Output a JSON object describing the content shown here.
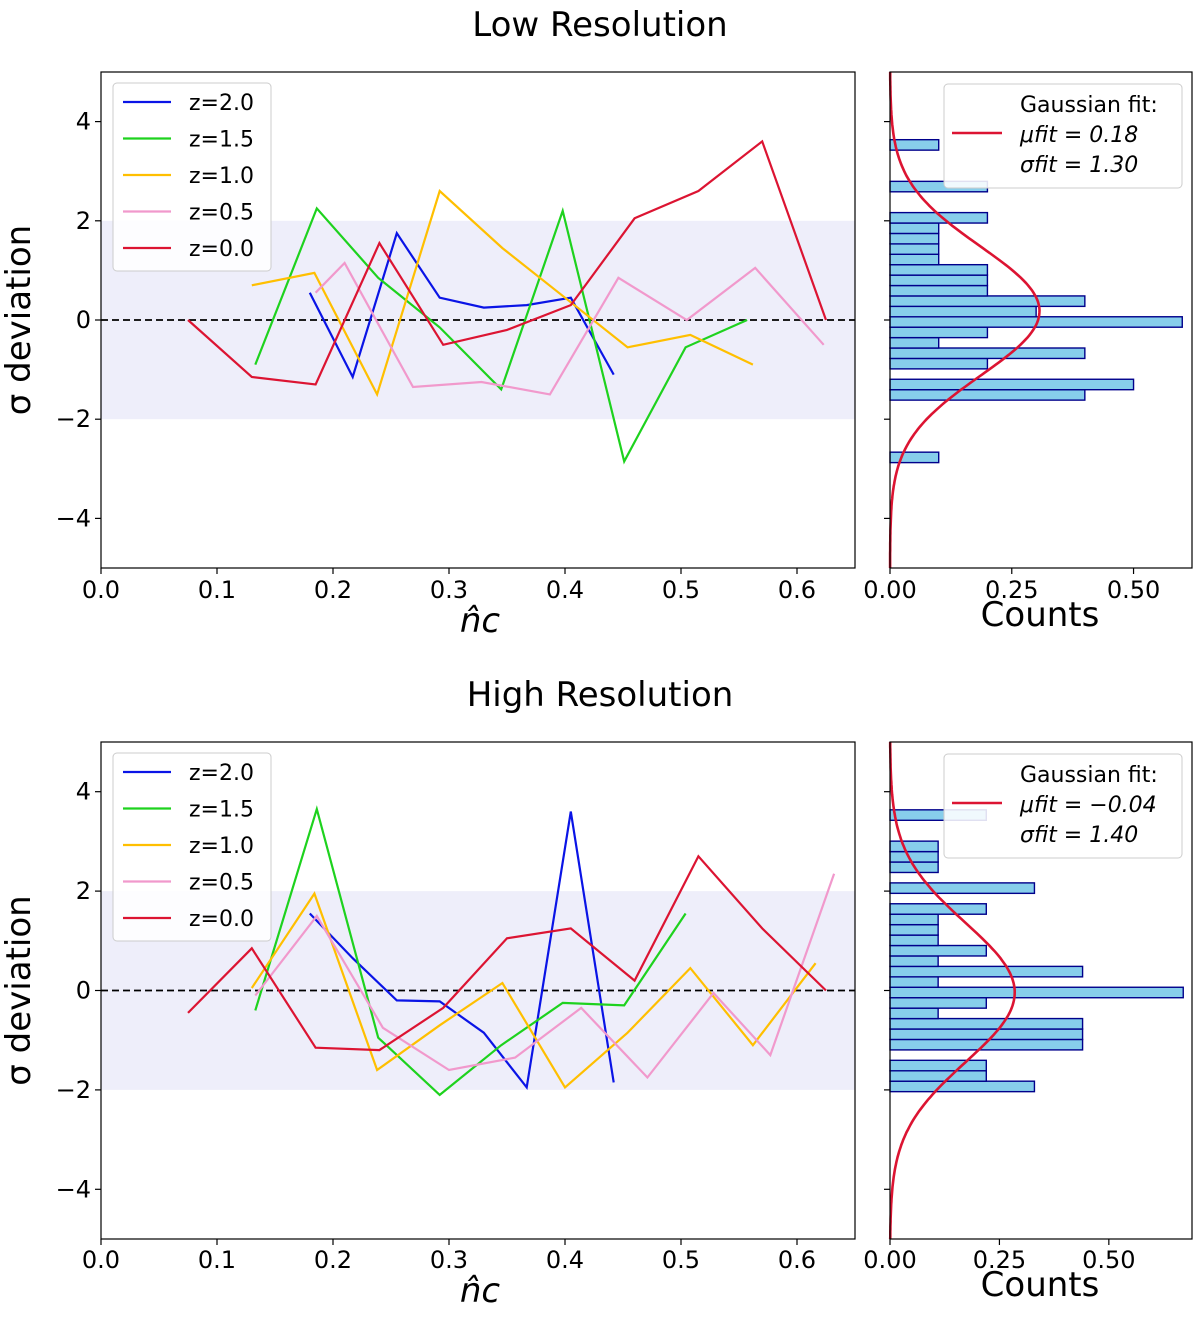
{
  "colors": {
    "z2.0": "#0a14e6",
    "z1.5": "#1ed21e",
    "z1.0": "#ffbf00",
    "z0.5": "#f199cc",
    "z0.0": "#dc1432",
    "band": "#eeeefa",
    "bar_fill": "#87ceeb",
    "bar_edge": "#00008b",
    "fit": "#dc1432"
  },
  "chart_data": [
    {
      "type": "line",
      "title": "Low Resolution",
      "xlabel": "n̂c",
      "ylabel": "σ deviation",
      "xlim": [
        0.0,
        0.65
      ],
      "ylim": [
        -5,
        5
      ],
      "xticks": [
        "0.0",
        "0.1",
        "0.2",
        "0.3",
        "0.4",
        "0.5",
        "0.6"
      ],
      "yticks": [
        "−4",
        "−2",
        "0",
        "2",
        "4"
      ],
      "band": [
        -2,
        2
      ],
      "reference_line": 0,
      "legend_position": "top-left",
      "series": [
        {
          "name": "z=2.0",
          "color_key": "z2.0",
          "x": [
            0.18,
            0.217,
            0.255,
            0.292,
            0.33,
            0.367,
            0.405,
            0.442
          ],
          "y": [
            0.55,
            -1.15,
            1.75,
            0.45,
            0.25,
            0.3,
            0.45,
            -1.1
          ]
        },
        {
          "name": "z=1.5",
          "color_key": "z1.5",
          "x": [
            0.133,
            0.186,
            0.239,
            0.292,
            0.345,
            0.398,
            0.451,
            0.504,
            0.557
          ],
          "y": [
            -0.9,
            2.25,
            0.85,
            -0.15,
            -1.4,
            2.2,
            -2.85,
            -0.55,
            0.0
          ]
        },
        {
          "name": "z=1.0",
          "color_key": "z1.0",
          "x": [
            0.13,
            0.184,
            0.238,
            0.292,
            0.346,
            0.4,
            0.454,
            0.508,
            0.562
          ],
          "y": [
            0.7,
            0.95,
            -1.5,
            2.6,
            1.45,
            0.45,
            -0.55,
            -0.3,
            -0.9
          ]
        },
        {
          "name": "z=0.5",
          "color_key": "z0.5",
          "x": [
            0.185,
            0.21,
            0.269,
            0.328,
            0.387,
            0.446,
            0.505,
            0.564,
            0.623
          ],
          "y": [
            0.55,
            1.15,
            -1.35,
            -1.25,
            -1.5,
            0.85,
            0.0,
            1.05,
            -0.5
          ]
        },
        {
          "name": "z=0.0",
          "color_key": "z0.0",
          "x": [
            0.075,
            0.13,
            0.185,
            0.24,
            0.295,
            0.35,
            0.405,
            0.46,
            0.515,
            0.57,
            0.625
          ],
          "y": [
            0.0,
            -1.15,
            -1.3,
            1.55,
            -0.5,
            -0.2,
            0.3,
            2.05,
            2.6,
            3.6,
            0.0
          ]
        }
      ]
    },
    {
      "type": "bar",
      "orientation": "horizontal",
      "xlabel": "Counts",
      "xlim": [
        0,
        0.62
      ],
      "ylim": [
        -5,
        5
      ],
      "xticks": [
        "0.00",
        "0.25",
        "0.50"
      ],
      "bin_width": 0.2105,
      "bins": [
        {
          "y": -2.77,
          "count": 0.1
        },
        {
          "y": -1.51,
          "count": 0.4
        },
        {
          "y": -1.3,
          "count": 0.5
        },
        {
          "y": -0.88,
          "count": 0.2
        },
        {
          "y": -0.67,
          "count": 0.4
        },
        {
          "y": -0.46,
          "count": 0.1
        },
        {
          "y": -0.25,
          "count": 0.2
        },
        {
          "y": -0.04,
          "count": 0.6
        },
        {
          "y": 0.17,
          "count": 0.3
        },
        {
          "y": 0.38,
          "count": 0.4
        },
        {
          "y": 0.59,
          "count": 0.2
        },
        {
          "y": 0.8,
          "count": 0.2
        },
        {
          "y": 1.01,
          "count": 0.2
        },
        {
          "y": 1.22,
          "count": 0.1
        },
        {
          "y": 1.43,
          "count": 0.1
        },
        {
          "y": 1.64,
          "count": 0.1
        },
        {
          "y": 1.85,
          "count": 0.1
        },
        {
          "y": 2.06,
          "count": 0.2
        },
        {
          "y": 2.69,
          "count": 0.2
        },
        {
          "y": 3.53,
          "count": 0.1
        }
      ],
      "fit": {
        "mu": 0.18,
        "sigma": 1.3
      },
      "legend_title": "Gaussian fit:",
      "legend_lines": [
        "μfit = 0.18",
        "σfit = 1.30"
      ]
    },
    {
      "type": "line",
      "title": "High Resolution",
      "xlabel": "n̂c",
      "ylabel": "σ deviation",
      "xlim": [
        0.0,
        0.65
      ],
      "ylim": [
        -5,
        5
      ],
      "xticks": [
        "0.0",
        "0.1",
        "0.2",
        "0.3",
        "0.4",
        "0.5",
        "0.6"
      ],
      "yticks": [
        "−4",
        "−2",
        "0",
        "2",
        "4"
      ],
      "band": [
        -2,
        2
      ],
      "reference_line": 0,
      "legend_position": "top-left",
      "series": [
        {
          "name": "z=2.0",
          "color_key": "z2.0",
          "x": [
            0.18,
            0.217,
            0.255,
            0.292,
            0.33,
            0.367,
            0.405,
            0.442
          ],
          "y": [
            1.55,
            0.65,
            -0.2,
            -0.22,
            -0.85,
            -1.95,
            3.6,
            -1.85
          ]
        },
        {
          "name": "z=1.5",
          "color_key": "z1.5",
          "x": [
            0.133,
            0.186,
            0.239,
            0.292,
            0.345,
            0.398,
            0.451,
            0.504
          ],
          "y": [
            -0.4,
            3.65,
            -0.95,
            -2.1,
            -1.1,
            -0.25,
            -0.3,
            1.55
          ]
        },
        {
          "name": "z=1.0",
          "color_key": "z1.0",
          "x": [
            0.13,
            0.184,
            0.238,
            0.292,
            0.346,
            0.4,
            0.454,
            0.508,
            0.562,
            0.616
          ],
          "y": [
            0.05,
            1.95,
            -1.6,
            -0.7,
            0.15,
            -1.95,
            -0.85,
            0.45,
            -1.1,
            0.55
          ]
        },
        {
          "name": "z=0.5",
          "color_key": "z0.5",
          "x": [
            0.133,
            0.186,
            0.243,
            0.3,
            0.357,
            0.414,
            0.471,
            0.528,
            0.577,
            0.632
          ],
          "y": [
            -0.1,
            1.5,
            -0.75,
            -1.6,
            -1.35,
            -0.35,
            -1.75,
            -0.05,
            -1.3,
            2.35
          ]
        },
        {
          "name": "z=0.0",
          "color_key": "z0.0",
          "x": [
            0.075,
            0.13,
            0.185,
            0.24,
            0.295,
            0.35,
            0.405,
            0.46,
            0.515,
            0.57,
            0.625
          ],
          "y": [
            -0.45,
            0.85,
            -1.15,
            -1.2,
            -0.35,
            1.05,
            1.25,
            0.2,
            2.7,
            1.25,
            0.0
          ]
        }
      ]
    },
    {
      "type": "bar",
      "orientation": "horizontal",
      "xlabel": "Counts",
      "xlim": [
        0,
        0.69
      ],
      "ylim": [
        -5,
        5
      ],
      "xticks": [
        "0.00",
        "0.25",
        "0.50"
      ],
      "bin_width": 0.2105,
      "bins": [
        {
          "y": -1.93,
          "count": 0.33
        },
        {
          "y": -1.72,
          "count": 0.22
        },
        {
          "y": -1.51,
          "count": 0.22
        },
        {
          "y": -1.09,
          "count": 0.44
        },
        {
          "y": -0.88,
          "count": 0.44
        },
        {
          "y": -0.67,
          "count": 0.44
        },
        {
          "y": -0.46,
          "count": 0.11
        },
        {
          "y": -0.25,
          "count": 0.22
        },
        {
          "y": -0.04,
          "count": 0.67
        },
        {
          "y": 0.17,
          "count": 0.11
        },
        {
          "y": 0.38,
          "count": 0.44
        },
        {
          "y": 0.59,
          "count": 0.11
        },
        {
          "y": 0.8,
          "count": 0.22
        },
        {
          "y": 1.01,
          "count": 0.11
        },
        {
          "y": 1.22,
          "count": 0.11
        },
        {
          "y": 1.43,
          "count": 0.11
        },
        {
          "y": 1.64,
          "count": 0.22
        },
        {
          "y": 2.06,
          "count": 0.33
        },
        {
          "y": 2.48,
          "count": 0.11
        },
        {
          "y": 2.69,
          "count": 0.11
        },
        {
          "y": 2.9,
          "count": 0.11
        },
        {
          "y": 3.53,
          "count": 0.22
        }
      ],
      "fit": {
        "mu": -0.04,
        "sigma": 1.4
      },
      "legend_title": "Gaussian fit:",
      "legend_lines": [
        "μfit = −0.04",
        "σfit = 1.40"
      ]
    }
  ]
}
